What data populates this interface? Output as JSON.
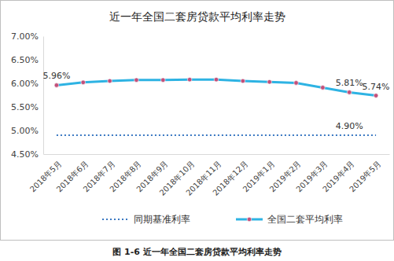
{
  "chart_data": {
    "type": "line",
    "title": "近一年全国二套房贷款平均利率走势",
    "caption": "图 1-6 近一年全国二套房贷款平均利率走势",
    "categories": [
      "2018年5月",
      "2018年6月",
      "2018年7月",
      "2018年8月",
      "2018年9月",
      "2018年10月",
      "2018年11月",
      "2018年12月",
      "2019年1月",
      "2019年2月",
      "2019年3月",
      "2019年4月",
      "2019年5月"
    ],
    "series": [
      {
        "name": "同期基准利率",
        "color": "#3a78c2",
        "line_style": "dotted",
        "values": [
          4.9,
          4.9,
          4.9,
          4.9,
          4.9,
          4.9,
          4.9,
          4.9,
          4.9,
          4.9,
          4.9,
          4.9,
          4.9
        ],
        "value_labels": [
          null,
          null,
          null,
          null,
          null,
          null,
          null,
          null,
          null,
          null,
          null,
          "4.90%",
          null
        ]
      },
      {
        "name": "全国二套平均利率",
        "color": "#2eb3e3",
        "line_style": "solid",
        "marker": "circle",
        "values": [
          5.96,
          6.02,
          6.05,
          6.07,
          6.07,
          6.08,
          6.08,
          6.05,
          6.03,
          6.01,
          5.91,
          5.81,
          5.74
        ],
        "value_labels": [
          "5.96%",
          null,
          null,
          null,
          null,
          null,
          null,
          null,
          null,
          null,
          null,
          "5.81%",
          "5.74%"
        ]
      }
    ],
    "ylim": [
      4.5,
      7.0
    ],
    "yticks": [
      {
        "value": 4.5,
        "label": "4.50%"
      },
      {
        "value": 5.0,
        "label": "5.00%"
      },
      {
        "value": 5.5,
        "label": "5.50%"
      },
      {
        "value": 6.0,
        "label": "6.00%"
      },
      {
        "value": 6.5,
        "label": "6.50%"
      },
      {
        "value": 7.0,
        "label": "7.00%"
      }
    ],
    "grid": false,
    "legend": "bottom",
    "data_labels": true
  }
}
